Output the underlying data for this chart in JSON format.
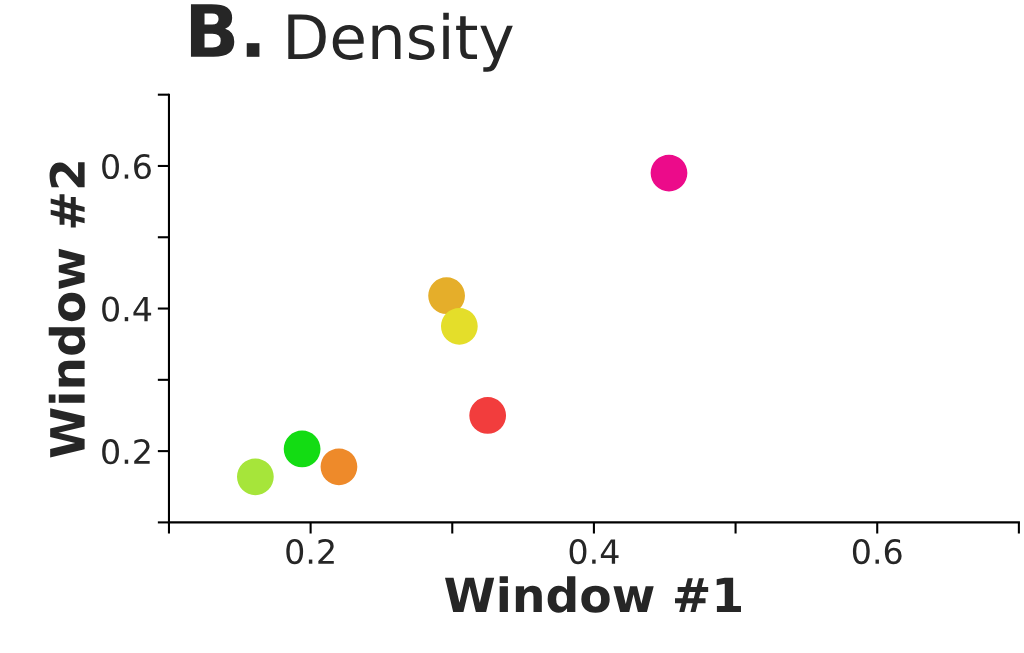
{
  "chart_data": {
    "type": "scatter",
    "title": "B. Density",
    "xlabel": "Window #1",
    "ylabel": "Window #2",
    "x": [
      0.453,
      0.296,
      0.305,
      0.325,
      0.194,
      0.22,
      0.161
    ],
    "values": [
      0.59,
      0.418,
      0.375,
      0.25,
      0.203,
      0.178,
      0.164
    ],
    "colors": [
      "#ec0b8a",
      "#e5ae2a",
      "#e4de2a",
      "#f23d3d",
      "#13dc13",
      "#ee8a2a",
      "#a6e53a"
    ],
    "marker": "circle",
    "xlim": [
      0.1,
      0.7
    ],
    "ylim": [
      0.1,
      0.7
    ],
    "xticks": [
      {
        "value": 0.1,
        "label": null
      },
      {
        "value": 0.2,
        "label": "0.2"
      },
      {
        "value": 0.3,
        "label": null
      },
      {
        "value": 0.4,
        "label": "0.4"
      },
      {
        "value": 0.5,
        "label": null
      },
      {
        "value": 0.6,
        "label": "0.6"
      },
      {
        "value": 0.7,
        "label": null
      }
    ],
    "yticks": [
      {
        "value": 0.1,
        "label": null
      },
      {
        "value": 0.2,
        "label": "0.2"
      },
      {
        "value": 0.3,
        "label": null
      },
      {
        "value": 0.4,
        "label": "0.4"
      },
      {
        "value": 0.5,
        "label": null
      },
      {
        "value": 0.6,
        "label": "0.6"
      },
      {
        "value": 0.7,
        "label": null
      }
    ],
    "grid": false,
    "legend": false
  }
}
